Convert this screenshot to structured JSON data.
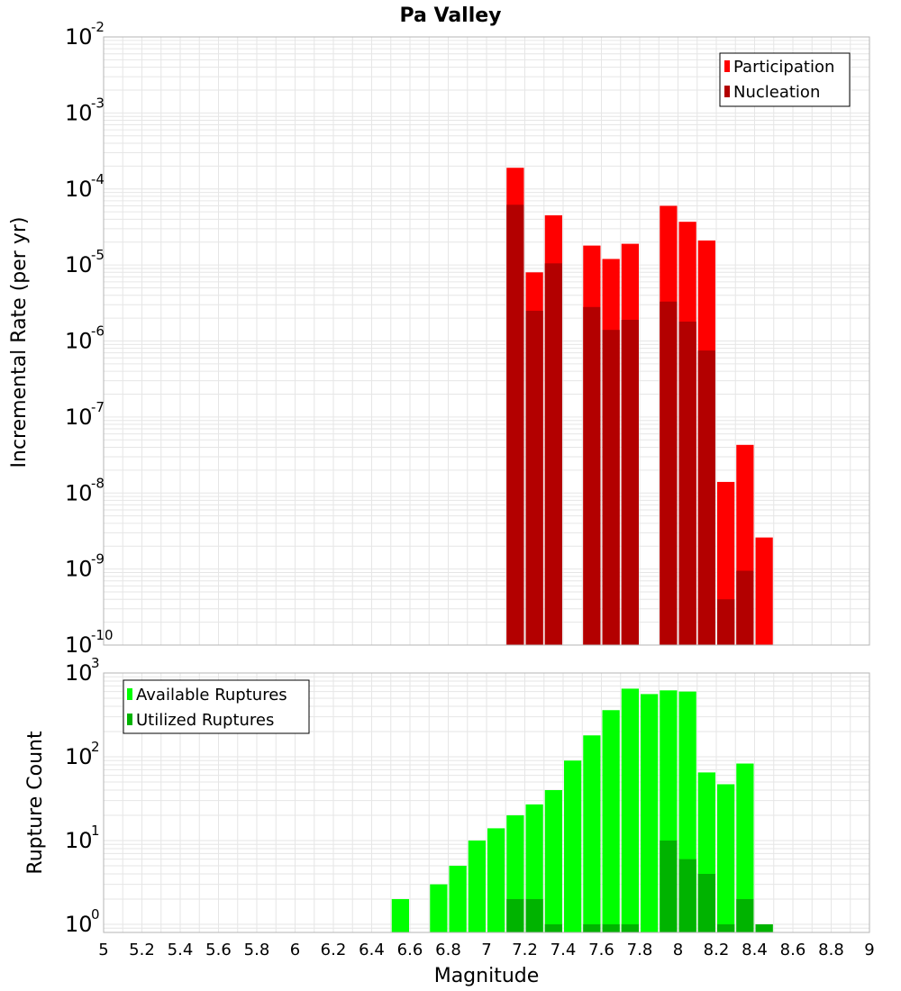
{
  "chart_data": {
    "title": "Pa Valley",
    "xlabel": "Magnitude",
    "x_ticks": [
      "5",
      "5.2",
      "5.4",
      "5.6",
      "5.8",
      "6",
      "6.2",
      "6.4",
      "6.6",
      "6.8",
      "7",
      "7.2",
      "7.4",
      "7.6",
      "7.8",
      "8",
      "8.2",
      "8.4",
      "8.6",
      "8.8",
      "9"
    ],
    "xlim": [
      5,
      9
    ],
    "bin_width": 0.1,
    "panels": [
      {
        "type": "bar",
        "ylabel": "Incremental Rate (per yr)",
        "yscale": "log",
        "ylim": [
          1e-10,
          0.01
        ],
        "y_ticks": [
          {
            "base": "10",
            "exp": "-10"
          },
          {
            "base": "10",
            "exp": "-9"
          },
          {
            "base": "10",
            "exp": "-8"
          },
          {
            "base": "10",
            "exp": "-7"
          },
          {
            "base": "10",
            "exp": "-6"
          },
          {
            "base": "10",
            "exp": "-5"
          },
          {
            "base": "10",
            "exp": "-4"
          },
          {
            "base": "10",
            "exp": "-3"
          },
          {
            "base": "10",
            "exp": "-2"
          }
        ],
        "legend_position": "top-right",
        "series": [
          {
            "name": "Participation",
            "color": "#ff0000",
            "x": [
              7.15,
              7.25,
              7.35,
              7.55,
              7.65,
              7.75,
              7.95,
              8.05,
              8.15,
              8.25,
              8.35,
              8.45
            ],
            "values": [
              0.00019,
              8e-06,
              4.5e-05,
              1.8e-05,
              1.2e-05,
              1.9e-05,
              6e-05,
              3.7e-05,
              2.1e-05,
              1.4e-08,
              4.3e-08,
              2.6e-09
            ]
          },
          {
            "name": "Nucleation",
            "color": "#b30000",
            "x": [
              7.15,
              7.25,
              7.35,
              7.55,
              7.65,
              7.75,
              7.95,
              8.05,
              8.15,
              8.25,
              8.35
            ],
            "values": [
              6.2e-05,
              2.5e-06,
              1.05e-05,
              2.8e-06,
              1.4e-06,
              1.9e-06,
              3.3e-06,
              1.8e-06,
              7.5e-07,
              4e-10,
              9.5e-10
            ]
          }
        ]
      },
      {
        "type": "bar",
        "ylabel": "Rupture Count",
        "yscale": "log",
        "ylim": [
          0.8,
          1000
        ],
        "y_ticks": [
          {
            "base": "10",
            "exp": "0",
            "value": 1
          },
          {
            "base": "10",
            "exp": "1",
            "value": 10
          },
          {
            "base": "10",
            "exp": "2",
            "value": 100
          },
          {
            "base": "10",
            "exp": "3",
            "value": 1000
          }
        ],
        "legend_position": "top-left",
        "series": [
          {
            "name": "Available Ruptures",
            "color": "#00ff00",
            "x": [
              6.55,
              6.75,
              6.85,
              6.95,
              7.05,
              7.15,
              7.25,
              7.35,
              7.45,
              7.55,
              7.65,
              7.75,
              7.85,
              7.95,
              8.05,
              8.15,
              8.25,
              8.35,
              8.45
            ],
            "values": [
              2,
              3,
              5,
              10,
              14,
              20,
              27,
              40,
              90,
              180,
              360,
              650,
              560,
              620,
              600,
              65,
              47,
              83,
              1
            ]
          },
          {
            "name": "Utilized Ruptures",
            "color": "#00b300",
            "x": [
              7.15,
              7.25,
              7.35,
              7.55,
              7.65,
              7.75,
              7.95,
              8.05,
              8.15,
              8.25,
              8.35,
              8.45
            ],
            "values": [
              2,
              2,
              1,
              1,
              1,
              1,
              10,
              6,
              4,
              1,
              2,
              1
            ]
          }
        ]
      }
    ]
  }
}
